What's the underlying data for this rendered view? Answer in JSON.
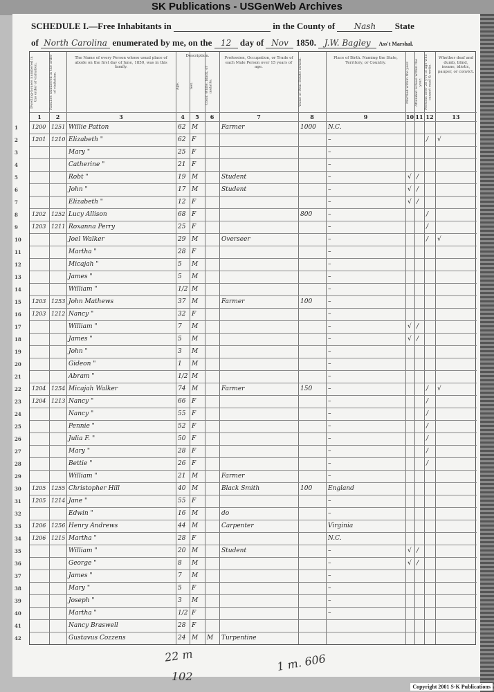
{
  "banner": "SK Publications - USGenWeb Archives",
  "heading": {
    "schedule": "SCHEDULE I.—Free Inhabitants in",
    "county_label": "in the County of",
    "county": "Nash",
    "state_label": "State",
    "of": "of",
    "state": "North Carolina",
    "enumerated": "enumerated by me, on the",
    "day": "12",
    "day_of": "day of",
    "month": "Nov",
    "year": "1850.",
    "marshal": "J.W. Bagley",
    "marshal_label": "Ass't Marshal."
  },
  "columns": [
    {
      "n": "1",
      "h": "Dwelling-houses numbered in the order of visitation."
    },
    {
      "n": "2",
      "h": "Families numbered in the order of visitation."
    },
    {
      "n": "3",
      "h": "The Name of every Person whose usual place of abode on the first day of June, 1850, was in this family."
    },
    {
      "n": "4",
      "h": "Age."
    },
    {
      "n": "5",
      "h": "Sex."
    },
    {
      "n": "6",
      "h": "Color. White, black, or mulatto."
    },
    {
      "n": "7",
      "h": "Profession, Occupation, or Trade of each Male Person over 15 years of age."
    },
    {
      "n": "8",
      "h": "Value of Real Estate owned."
    },
    {
      "n": "9",
      "h": "Place of Birth. Naming the State, Territory, or Country."
    },
    {
      "n": "10",
      "h": "Married within the year."
    },
    {
      "n": "11",
      "h": "Attended School within the year."
    },
    {
      "n": "12",
      "h": "Persons over 20 y'rs of age who cannot read & write."
    },
    {
      "n": "13",
      "h": "Whether deaf and dumb, blind, insane, idiotic, pauper, or convict."
    }
  ],
  "description_label": "Description.",
  "rows": [
    [
      "1",
      "1200",
      "1251",
      "Willie Patton",
      "62",
      "M",
      "",
      "Farmer",
      "1000",
      "N.C.",
      "",
      "",
      "",
      ""
    ],
    [
      "2",
      "1201",
      "1210",
      "Elizabeth  \"",
      "62",
      "F",
      "",
      "",
      "",
      "–",
      "",
      "",
      "/",
      "√"
    ],
    [
      "3",
      "",
      "",
      "Mary  \"",
      "25",
      "F",
      "",
      "",
      "",
      "–",
      "",
      "",
      "",
      ""
    ],
    [
      "4",
      "",
      "",
      "Catherine  \"",
      "21",
      "F",
      "",
      "",
      "",
      "–",
      "",
      "",
      "",
      ""
    ],
    [
      "5",
      "",
      "",
      "Robt  \"",
      "19",
      "M",
      "",
      "Student",
      "",
      "–",
      "√",
      "/",
      "",
      ""
    ],
    [
      "6",
      "",
      "",
      "John  \"",
      "17",
      "M",
      "",
      "Student",
      "",
      "–",
      "√",
      "/",
      "",
      ""
    ],
    [
      "7",
      "",
      "",
      "Elizabeth  \"",
      "12",
      "F",
      "",
      "",
      "",
      "–",
      "√",
      "/",
      "",
      ""
    ],
    [
      "8",
      "1202",
      "1252",
      "Lucy Allison",
      "68",
      "F",
      "",
      "",
      "800",
      "–",
      "",
      "",
      "/",
      ""
    ],
    [
      "9",
      "1203",
      "1211",
      "Roxanna Perry",
      "25",
      "F",
      "",
      "",
      "",
      "–",
      "",
      "",
      "/",
      ""
    ],
    [
      "10",
      "",
      "",
      "Joel Walker",
      "29",
      "M",
      "",
      "Overseer",
      "",
      "–",
      "",
      "",
      "/",
      "√"
    ],
    [
      "11",
      "",
      "",
      "Martha  \"",
      "28",
      "F",
      "",
      "",
      "",
      "–",
      "",
      "",
      "",
      ""
    ],
    [
      "12",
      "",
      "",
      "Micajah  \"",
      "5",
      "M",
      "",
      "",
      "",
      "–",
      "",
      "",
      "",
      ""
    ],
    [
      "13",
      "",
      "",
      "James  \"",
      "5",
      "M",
      "",
      "",
      "",
      "–",
      "",
      "",
      "",
      ""
    ],
    [
      "14",
      "",
      "",
      "William  \"",
      "1/2",
      "M",
      "",
      "",
      "",
      "–",
      "",
      "",
      "",
      ""
    ],
    [
      "15",
      "1203",
      "1253",
      "John Mathews",
      "37",
      "M",
      "",
      "Farmer",
      "100",
      "–",
      "",
      "",
      "",
      ""
    ],
    [
      "16",
      "1203",
      "1212",
      "Nancy  \"",
      "32",
      "F",
      "",
      "",
      "",
      "–",
      "",
      "",
      "",
      ""
    ],
    [
      "17",
      "",
      "",
      "William  \"",
      "7",
      "M",
      "",
      "",
      "",
      "–",
      "√",
      "/",
      "",
      ""
    ],
    [
      "18",
      "",
      "",
      "James  \"",
      "5",
      "M",
      "",
      "",
      "",
      "–",
      "√",
      "/",
      "",
      ""
    ],
    [
      "19",
      "",
      "",
      "John  \"",
      "3",
      "M",
      "",
      "",
      "",
      "–",
      "",
      "",
      "",
      ""
    ],
    [
      "20",
      "",
      "",
      "Gideon  \"",
      "1",
      "M",
      "",
      "",
      "",
      "–",
      "",
      "",
      "",
      ""
    ],
    [
      "21",
      "",
      "",
      "Abram  \"",
      "1/2",
      "M",
      "",
      "",
      "",
      "–",
      "",
      "",
      "",
      ""
    ],
    [
      "22",
      "1204",
      "1254",
      "Micajah Walker",
      "74",
      "M",
      "",
      "Farmer",
      "150",
      "–",
      "",
      "",
      "/",
      "√"
    ],
    [
      "23",
      "1204",
      "1213",
      "Nancy  \"",
      "66",
      "F",
      "",
      "",
      "",
      "–",
      "",
      "",
      "/",
      ""
    ],
    [
      "24",
      "",
      "",
      "Nancy  \"",
      "55",
      "F",
      "",
      "",
      "",
      "–",
      "",
      "",
      "/",
      ""
    ],
    [
      "25",
      "",
      "",
      "Pennie  \"",
      "52",
      "F",
      "",
      "",
      "",
      "–",
      "",
      "",
      "/",
      ""
    ],
    [
      "26",
      "",
      "",
      "Julia F.  \"",
      "50",
      "F",
      "",
      "",
      "",
      "–",
      "",
      "",
      "/",
      ""
    ],
    [
      "27",
      "",
      "",
      "Mary  \"",
      "28",
      "F",
      "",
      "",
      "",
      "–",
      "",
      "",
      "/",
      ""
    ],
    [
      "28",
      "",
      "",
      "Bettie  \"",
      "26",
      "F",
      "",
      "",
      "",
      "–",
      "",
      "",
      "/",
      ""
    ],
    [
      "29",
      "",
      "",
      "William  \"",
      "21",
      "M",
      "",
      "Farmer",
      "",
      "–",
      "",
      "",
      "",
      ""
    ],
    [
      "30",
      "1205",
      "1255",
      "Christopher Hill",
      "40",
      "M",
      "",
      "Black Smith",
      "100",
      "England",
      "",
      "",
      "",
      ""
    ],
    [
      "31",
      "1205",
      "1214",
      "Jane  \"",
      "55",
      "F",
      "",
      "",
      "",
      "–",
      "",
      "",
      "",
      ""
    ],
    [
      "32",
      "",
      "",
      "Edwin  \"",
      "16",
      "M",
      "",
      "do",
      "",
      "–",
      "",
      "",
      "",
      ""
    ],
    [
      "33",
      "1206",
      "1256",
      "Henry Andrews",
      "44",
      "M",
      "",
      "Carpenter",
      "",
      "Virginia",
      "",
      "",
      "",
      ""
    ],
    [
      "34",
      "1206",
      "1215",
      "Martha  \"",
      "28",
      "F",
      "",
      "",
      "",
      "N.C.",
      "",
      "",
      "",
      ""
    ],
    [
      "35",
      "",
      "",
      "William  \"",
      "20",
      "M",
      "",
      "Student",
      "",
      "–",
      "√",
      "/",
      "",
      ""
    ],
    [
      "36",
      "",
      "",
      "George  \"",
      "8",
      "M",
      "",
      "",
      "",
      "–",
      "√",
      "/",
      "",
      ""
    ],
    [
      "37",
      "",
      "",
      "James  \"",
      "7",
      "M",
      "",
      "",
      "",
      "–",
      "",
      "",
      "",
      ""
    ],
    [
      "38",
      "",
      "",
      "Mary  \"",
      "5",
      "F",
      "",
      "",
      "",
      "–",
      "",
      "",
      "",
      ""
    ],
    [
      "39",
      "",
      "",
      "Joseph  \"",
      "3",
      "M",
      "",
      "",
      "",
      "–",
      "",
      "",
      "",
      ""
    ],
    [
      "40",
      "",
      "",
      "Martha  \"",
      "1/2",
      "F",
      "",
      "",
      "",
      "–",
      "",
      "",
      "",
      ""
    ],
    [
      "41",
      "",
      "",
      "Nancy Braswell",
      "28",
      "F",
      "",
      "",
      "",
      "",
      "",
      "",
      "",
      ""
    ],
    [
      "42",
      "",
      "",
      "Gustavus Cozzens",
      "24",
      "M",
      "M",
      "Turpentine",
      "",
      "",
      "",
      "",
      "",
      ""
    ]
  ],
  "notes": {
    "tally1": "22 m",
    "tally2": "102",
    "tally3": "1 m. 606"
  },
  "copyright": "Copyright 2001 S-K Publications"
}
